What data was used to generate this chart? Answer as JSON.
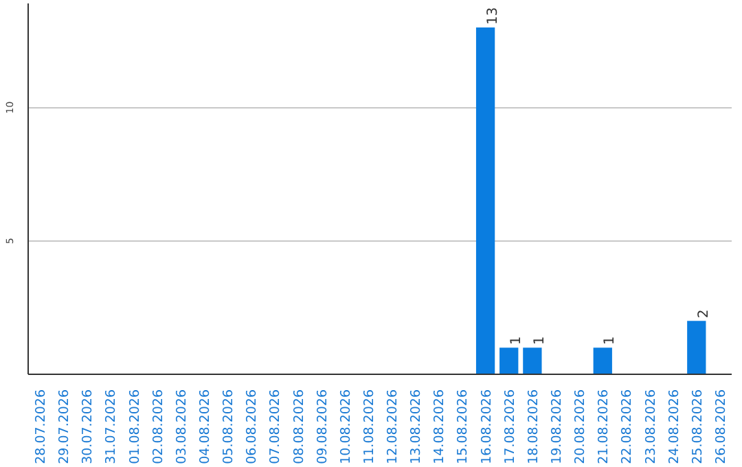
{
  "chart_data": {
    "type": "bar",
    "categories": [
      "28.07.2026",
      "29.07.2026",
      "30.07.2026",
      "31.07.2026",
      "01.08.2026",
      "02.08.2026",
      "03.08.2026",
      "04.08.2026",
      "05.08.2026",
      "06.08.2026",
      "07.08.2026",
      "08.08.2026",
      "09.08.2026",
      "10.08.2026",
      "11.08.2026",
      "12.08.2026",
      "13.08.2026",
      "14.08.2026",
      "15.08.2026",
      "16.08.2026",
      "17.08.2026",
      "18.08.2026",
      "19.08.2026",
      "20.08.2026",
      "21.08.2026",
      "22.08.2026",
      "23.08.2026",
      "24.08.2026",
      "25.08.2026",
      "26.08.2026"
    ],
    "values": [
      0,
      0,
      0,
      0,
      0,
      0,
      0,
      0,
      0,
      0,
      0,
      0,
      0,
      0,
      0,
      0,
      0,
      0,
      0,
      13,
      1,
      1,
      0,
      0,
      1,
      0,
      0,
      0,
      2,
      0
    ],
    "value_labels": [
      null,
      null,
      null,
      null,
      null,
      null,
      null,
      null,
      null,
      null,
      null,
      null,
      null,
      null,
      null,
      null,
      null,
      null,
      null,
      "13",
      "1",
      "1",
      null,
      null,
      "1",
      null,
      null,
      null,
      "2",
      null
    ],
    "color": "#0a7de0",
    "ylim": [
      0,
      13.9
    ],
    "yticks": [
      5,
      10
    ],
    "grid": "y"
  }
}
